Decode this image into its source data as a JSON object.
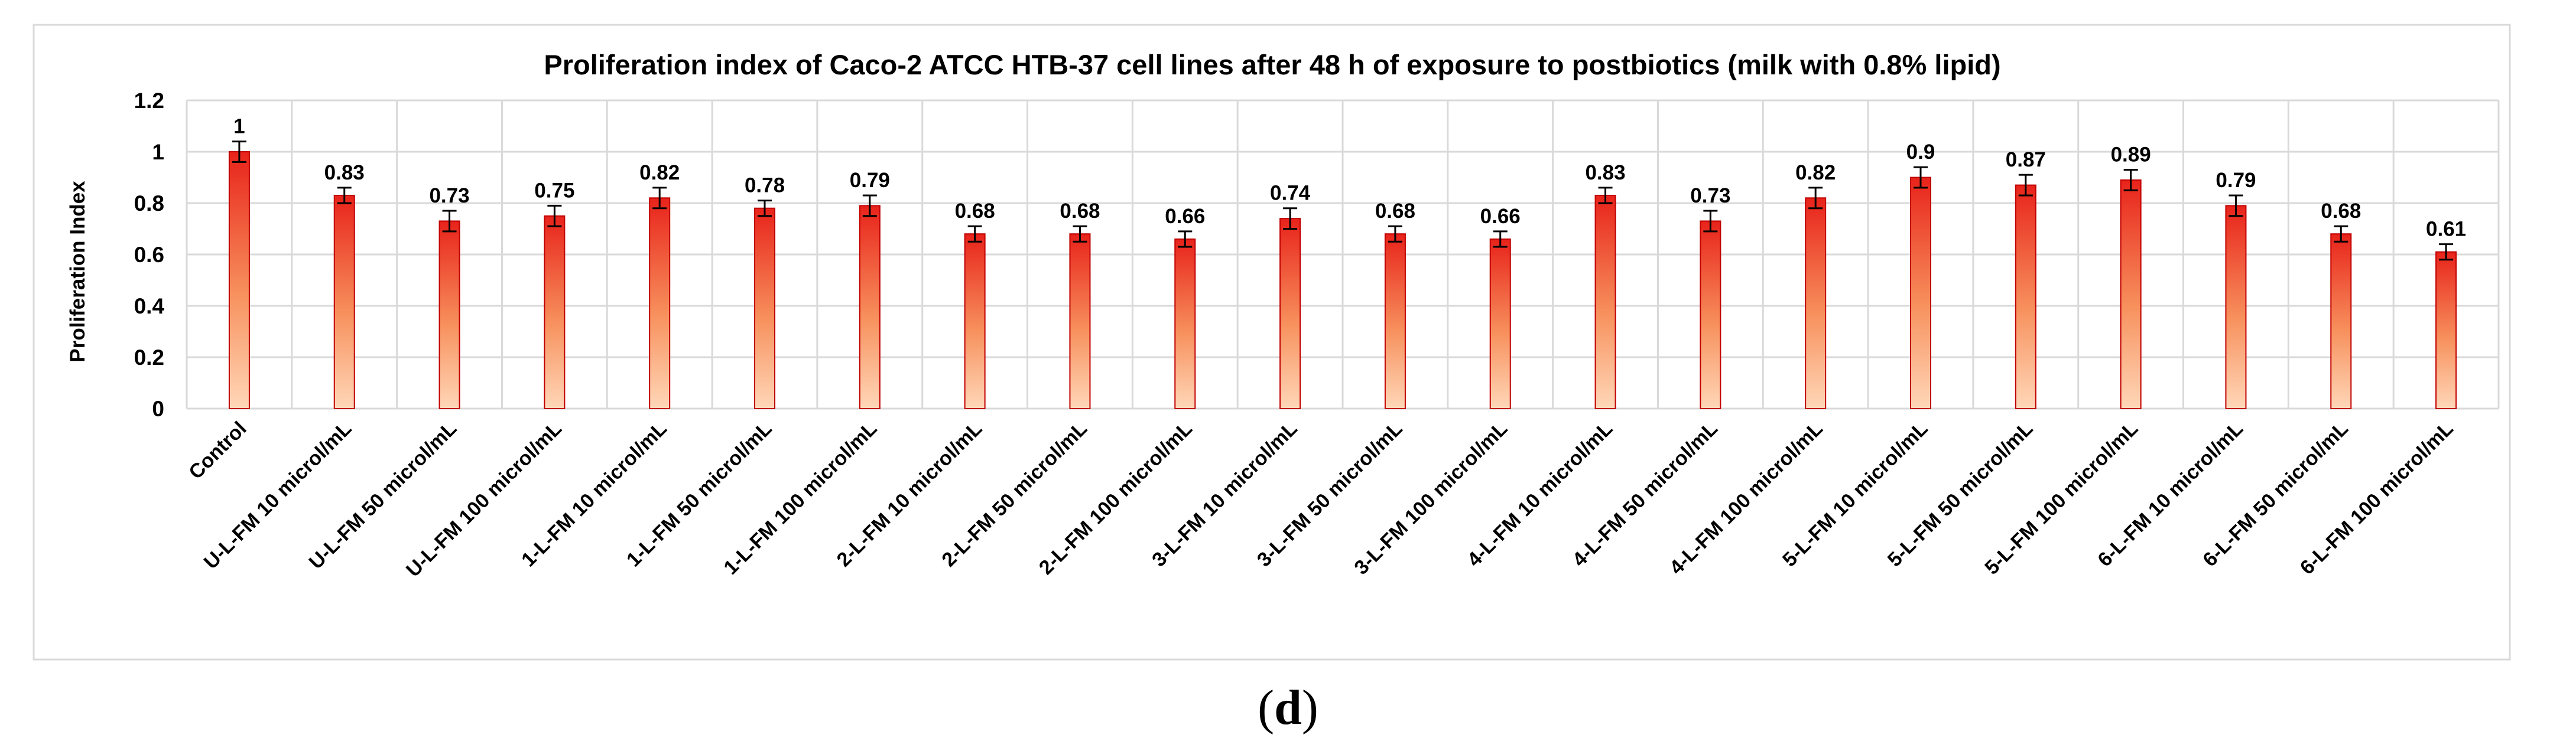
{
  "chart_data": {
    "type": "bar",
    "title": "Proliferation index of Caco-2 ATCC HTB-37 cell lines after 48 h of exposure to postbiotics (milk with 0.8% lipid)",
    "xlabel": "",
    "ylabel": "Proliferation Index",
    "ylim": [
      0,
      1.2
    ],
    "yticks": [
      0,
      0.2,
      0.4,
      0.6,
      0.8,
      1,
      1.2
    ],
    "grid": true,
    "legend": "none",
    "error_bars": true,
    "categories": [
      "Control",
      "U-L-FM 10 microl/mL",
      "U-L-FM 50 microl/mL",
      "U-L-FM 100 microl/mL",
      "1-L-FM 10 microl/mL",
      "1-L-FM 50 microl/mL",
      "1-L-FM 100 microl/mL",
      "2-L-FM 10 microl/mL",
      "2-L-FM 50 microl/mL",
      "2-L-FM 100 microl/mL",
      "3-L-FM 10 microl/mL",
      "3-L-FM 50 microl/mL",
      "3-L-FM 100 microl/mL",
      "4-L-FM 10 microl/mL",
      "4-L-FM 50 microl/mL",
      "4-L-FM 100 microl/mL",
      "5-L-FM 10 microl/mL",
      "5-L-FM 50 microl/mL",
      "5-L-FM 100 microl/mL",
      "6-L-FM 10 microl/mL",
      "6-L-FM 50 microl/mL",
      "6-L-FM 100 microl/mL"
    ],
    "values": [
      1,
      0.83,
      0.73,
      0.75,
      0.82,
      0.78,
      0.79,
      0.68,
      0.68,
      0.66,
      0.74,
      0.68,
      0.66,
      0.83,
      0.73,
      0.82,
      0.9,
      0.87,
      0.89,
      0.79,
      0.68,
      0.61
    ],
    "data_labels": [
      "1",
      "0.83",
      "0.73",
      "0.75",
      "0.82",
      "0.78",
      "0.79",
      "0.68",
      "0.68",
      "0.66",
      "0.74",
      "0.68",
      "0.66",
      "0.83",
      "0.73",
      "0.82",
      "0.9",
      "0.87",
      "0.89",
      "0.79",
      "0.68",
      "0.61"
    ],
    "errors": [
      0.04,
      0.03,
      0.04,
      0.04,
      0.04,
      0.03,
      0.04,
      0.03,
      0.03,
      0.03,
      0.04,
      0.03,
      0.03,
      0.03,
      0.04,
      0.04,
      0.04,
      0.04,
      0.04,
      0.04,
      0.03,
      0.03
    ],
    "colors": {
      "bar_top": "#E8231B",
      "bar_bottom": "#FFD7B8",
      "bar_edge": "#C00000",
      "error": "#000000",
      "grid": "#D9D9D9",
      "frame": "#D9D9D9"
    }
  },
  "caption": {
    "open": "(",
    "letter": "d",
    "close": ")"
  }
}
